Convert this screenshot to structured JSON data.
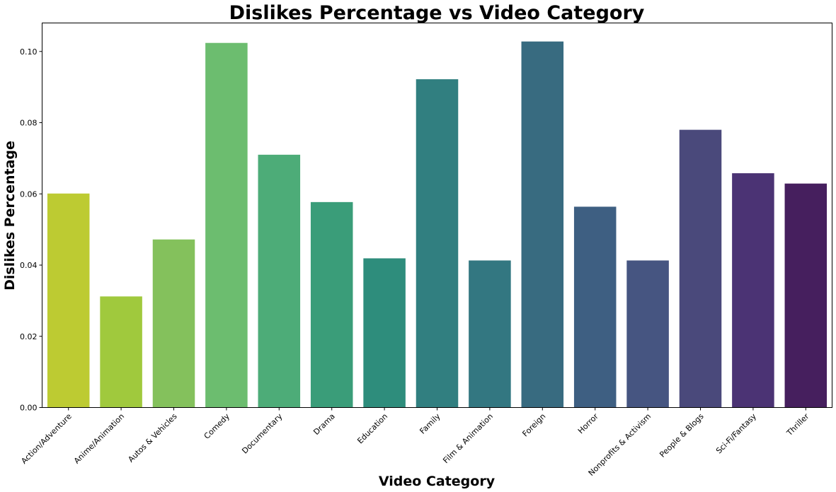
{
  "chart_data": {
    "type": "bar",
    "title": "Dislikes Percentage vs Video Category",
    "xlabel": "Video Category",
    "ylabel": "Dislikes Percentage",
    "ylim": [
      0,
      0.108
    ],
    "yticks": [
      "0.00",
      "0.02",
      "0.04",
      "0.06",
      "0.08",
      "0.10"
    ],
    "categories": [
      "Action/Adventure",
      "Anime/Animation",
      "Autos & Vehicles",
      "Comedy",
      "Documentary",
      "Drama",
      "Education",
      "Family",
      "Film & Animation",
      "Foreign",
      "Horror",
      "Nonprofits & Activism",
      "People & Blogs",
      "Sci-Fi/Fantasy",
      "Thriller"
    ],
    "values": [
      0.0601,
      0.0312,
      0.0472,
      0.1024,
      0.071,
      0.0577,
      0.0419,
      0.0922,
      0.0413,
      0.1028,
      0.0564,
      0.0413,
      0.078,
      0.0658,
      0.0629
    ],
    "colors": [
      "#bdcb32",
      "#a0c93d",
      "#84c15c",
      "#6cbd6f",
      "#4dac78",
      "#3a9d79",
      "#2e8d7c",
      "#317f80",
      "#337781",
      "#386b80",
      "#3e5f82",
      "#465581",
      "#4a497b",
      "#4b3374",
      "#461f5e"
    ],
    "grid": false
  }
}
